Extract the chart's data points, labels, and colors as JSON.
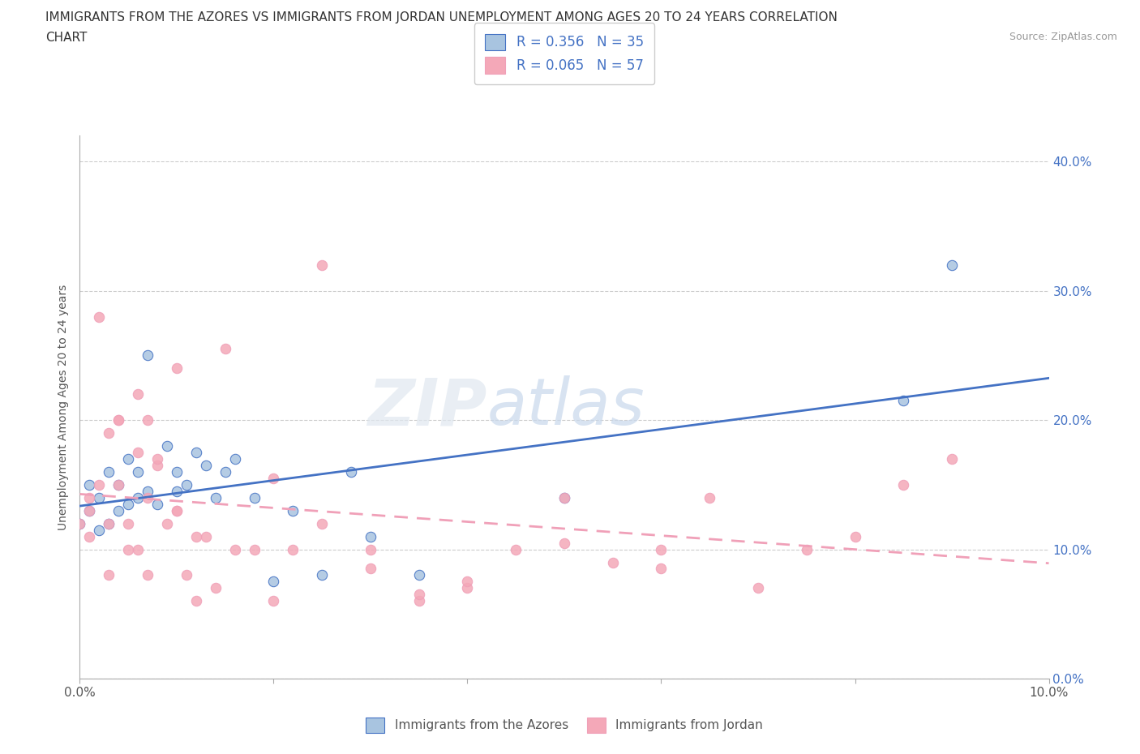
{
  "title_line1": "IMMIGRANTS FROM THE AZORES VS IMMIGRANTS FROM JORDAN UNEMPLOYMENT AMONG AGES 20 TO 24 YEARS CORRELATION",
  "title_line2": "CHART",
  "source": "Source: ZipAtlas.com",
  "ylabel": "Unemployment Among Ages 20 to 24 years",
  "legend_label1": "Immigrants from the Azores",
  "legend_label2": "Immigrants from Jordan",
  "R1": 0.356,
  "N1": 35,
  "R2": 0.065,
  "N2": 57,
  "color1": "#a8c4e0",
  "color2": "#f4a8b8",
  "line_color1": "#4472c4",
  "line_color2": "#f0a0b8",
  "xlim": [
    0.0,
    0.1
  ],
  "ylim": [
    0.0,
    0.42
  ],
  "azores_x": [
    0.0,
    0.001,
    0.001,
    0.002,
    0.002,
    0.003,
    0.003,
    0.004,
    0.004,
    0.005,
    0.005,
    0.006,
    0.006,
    0.007,
    0.007,
    0.008,
    0.009,
    0.01,
    0.01,
    0.011,
    0.012,
    0.013,
    0.014,
    0.015,
    0.016,
    0.018,
    0.02,
    0.022,
    0.025,
    0.028,
    0.03,
    0.035,
    0.05,
    0.085,
    0.09
  ],
  "azores_y": [
    0.12,
    0.13,
    0.15,
    0.115,
    0.14,
    0.12,
    0.16,
    0.13,
    0.15,
    0.135,
    0.17,
    0.14,
    0.16,
    0.25,
    0.145,
    0.135,
    0.18,
    0.145,
    0.16,
    0.15,
    0.175,
    0.165,
    0.14,
    0.16,
    0.17,
    0.14,
    0.075,
    0.13,
    0.08,
    0.16,
    0.11,
    0.08,
    0.14,
    0.215,
    0.32
  ],
  "jordan_x": [
    0.0,
    0.001,
    0.001,
    0.001,
    0.002,
    0.002,
    0.003,
    0.003,
    0.003,
    0.004,
    0.004,
    0.004,
    0.005,
    0.005,
    0.006,
    0.006,
    0.006,
    0.007,
    0.007,
    0.007,
    0.008,
    0.008,
    0.009,
    0.01,
    0.01,
    0.011,
    0.012,
    0.013,
    0.014,
    0.015,
    0.016,
    0.018,
    0.02,
    0.022,
    0.025,
    0.03,
    0.035,
    0.04,
    0.045,
    0.05,
    0.055,
    0.06,
    0.065,
    0.07,
    0.075,
    0.08,
    0.085,
    0.09,
    0.01,
    0.012,
    0.02,
    0.025,
    0.03,
    0.035,
    0.04,
    0.05,
    0.06
  ],
  "jordan_y": [
    0.12,
    0.11,
    0.13,
    0.14,
    0.28,
    0.15,
    0.19,
    0.12,
    0.08,
    0.15,
    0.2,
    0.2,
    0.12,
    0.1,
    0.1,
    0.22,
    0.175,
    0.14,
    0.2,
    0.08,
    0.165,
    0.17,
    0.12,
    0.13,
    0.24,
    0.08,
    0.06,
    0.11,
    0.07,
    0.255,
    0.1,
    0.1,
    0.06,
    0.1,
    0.32,
    0.1,
    0.06,
    0.07,
    0.1,
    0.14,
    0.09,
    0.1,
    0.14,
    0.07,
    0.1,
    0.11,
    0.15,
    0.17,
    0.13,
    0.11,
    0.155,
    0.12,
    0.085,
    0.065,
    0.075,
    0.105,
    0.085
  ],
  "background_color": "#ffffff"
}
